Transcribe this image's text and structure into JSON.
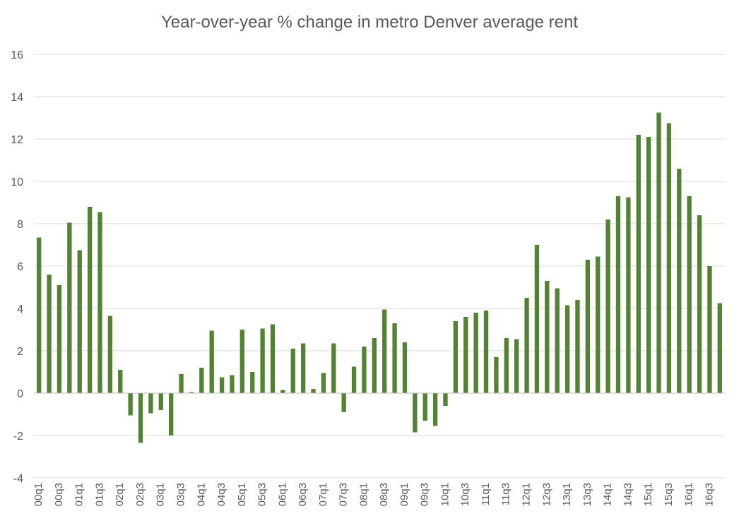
{
  "chart_data": {
    "type": "bar",
    "title": "Year-over-year % change in metro Denver average rent",
    "xlabel": "",
    "ylabel": "",
    "ylim": [
      -4,
      16
    ],
    "yticks": [
      -4,
      -2,
      0,
      2,
      4,
      6,
      8,
      10,
      12,
      14,
      16
    ],
    "grid": true,
    "legend": "none",
    "bar_color": "#548235",
    "grid_color": "#d9d9d9",
    "categories": [
      "00q1",
      "00q2",
      "00q3",
      "00q4",
      "01q1",
      "01q2",
      "01q3",
      "01q4",
      "02q1",
      "02q2",
      "02q3",
      "02q4",
      "03q1",
      "03q2",
      "03q3",
      "03q4",
      "04q1",
      "04q2",
      "04q3",
      "04q4",
      "05q1",
      "05q2",
      "05q3",
      "05q4",
      "06q1",
      "06q2",
      "06q3",
      "06q4",
      "07q1",
      "07q2",
      "07q3",
      "07q4",
      "08q1",
      "08q2",
      "08q3",
      "08q4",
      "09q1",
      "09q2",
      "09q3",
      "09q4",
      "10q1",
      "10q2",
      "10q3",
      "10q4",
      "11q1",
      "11q2",
      "11q3",
      "11q4",
      "12q1",
      "12q2",
      "12q3",
      "12q4",
      "13q1",
      "13q2",
      "13q3",
      "13q4",
      "14q1",
      "14q2",
      "14q3",
      "14q4",
      "15q1",
      "15q2",
      "15q3",
      "15q4",
      "16q1",
      "16q2",
      "16q3",
      "16q4"
    ],
    "values": [
      7.35,
      5.6,
      5.1,
      8.05,
      6.75,
      8.8,
      8.55,
      3.65,
      1.1,
      -1.05,
      -2.35,
      -0.95,
      -0.8,
      -2.0,
      0.9,
      0.05,
      1.2,
      2.95,
      0.75,
      0.85,
      3.0,
      1.0,
      3.05,
      3.25,
      0.15,
      2.1,
      2.35,
      0.2,
      0.95,
      2.35,
      -0.9,
      1.25,
      2.2,
      2.6,
      3.95,
      3.3,
      2.4,
      -1.85,
      -1.3,
      -1.55,
      -0.6,
      3.4,
      3.6,
      3.8,
      3.9,
      1.7,
      2.6,
      2.55,
      4.5,
      7.0,
      5.3,
      4.95,
      4.15,
      4.4,
      6.3,
      6.45,
      8.2,
      9.3,
      9.25,
      12.2,
      12.1,
      13.25,
      12.75,
      10.6,
      9.3,
      8.4,
      6.0,
      4.25
    ],
    "label_every": 2
  }
}
